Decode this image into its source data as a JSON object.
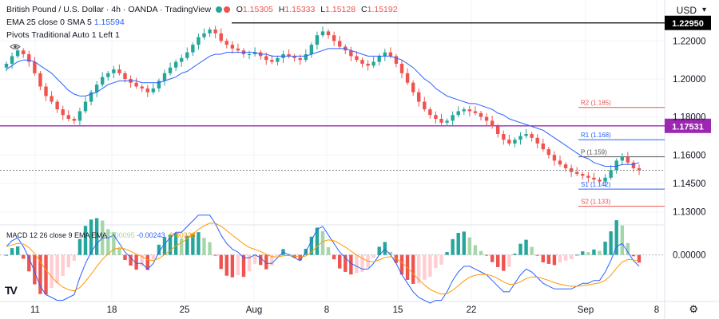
{
  "header": {
    "symbol": "British Pound / U.S. Dollar",
    "interval": "4h",
    "exchange": "OANDA",
    "platform": "TradingView",
    "open_label": "O",
    "open": "1.15305",
    "high_label": "H",
    "high": "1.15333",
    "low_label": "L",
    "low": "1.15128",
    "close_label": "C",
    "close": "1.15192",
    "ema_label": "EMA 25 close 0 SMA 5",
    "ema_value": "1.15594",
    "pivots_label": "Pivots Traditional Auto 1 Left 1"
  },
  "currency": "USD",
  "colors": {
    "bull": "#26a69a",
    "bear": "#ef5350",
    "ema": "#2962ff",
    "macd_line": "#2962ff",
    "signal_line": "#ff9800",
    "level_line": "#9c27b0"
  },
  "chart_data": [
    {
      "type": "candlestick",
      "title": "British Pound / U.S. Dollar, 4h, OANDA",
      "ylabel": "USD",
      "ylim": [
        1.124,
        1.234
      ],
      "y_ticks": [
        "1.22000",
        "1.20000",
        "1.18000",
        "1.16000",
        "1.14500",
        "1.13000"
      ],
      "x_ticks": [
        "11",
        "18",
        "25",
        "Aug",
        "8",
        "15",
        "22",
        "Sep",
        "8"
      ],
      "horizontal_levels": [
        {
          "label": "1.22950",
          "value": 1.2295
        },
        {
          "label": "1.17531",
          "value": 1.17531
        }
      ],
      "pivots": [
        {
          "label": "R2 (1.185)",
          "value": 1.185
        },
        {
          "label": "R1 (1.168)",
          "value": 1.168
        },
        {
          "label": "P (1.159)",
          "value": 1.159
        },
        {
          "label": "S1 (1.142)",
          "value": 1.142
        },
        {
          "label": "S2 (1.133)",
          "value": 1.133
        }
      ],
      "last_price": 1.15192,
      "close_path": [
        1.208,
        1.212,
        1.215,
        1.213,
        1.209,
        1.203,
        1.196,
        1.191,
        1.188,
        1.184,
        1.181,
        1.179,
        1.178,
        1.183,
        1.188,
        1.193,
        1.197,
        1.201,
        1.203,
        1.205,
        1.203,
        1.2,
        1.198,
        1.196,
        1.195,
        1.193,
        1.195,
        1.199,
        1.203,
        1.206,
        1.209,
        1.211,
        1.214,
        1.218,
        1.222,
        1.224,
        1.226,
        1.224,
        1.22,
        1.218,
        1.216,
        1.215,
        1.213,
        1.213,
        1.214,
        1.212,
        1.21,
        1.209,
        1.211,
        1.213,
        1.212,
        1.211,
        1.21,
        1.213,
        1.218,
        1.223,
        1.225,
        1.223,
        1.22,
        1.217,
        1.215,
        1.212,
        1.21,
        1.208,
        1.207,
        1.209,
        1.212,
        1.214,
        1.212,
        1.208,
        1.203,
        1.198,
        1.193,
        1.188,
        1.184,
        1.181,
        1.179,
        1.177,
        1.178,
        1.181,
        1.183,
        1.184,
        1.183,
        1.182,
        1.18,
        1.178,
        1.175,
        1.171,
        1.168,
        1.166,
        1.168,
        1.17,
        1.171,
        1.169,
        1.166,
        1.163,
        1.16,
        1.157,
        1.155,
        1.153,
        1.151,
        1.15,
        1.149,
        1.148,
        1.147,
        1.146,
        1.148,
        1.152,
        1.157,
        1.159,
        1.156,
        1.153,
        1.152
      ],
      "ema_path": [
        1.205,
        1.207,
        1.209,
        1.21,
        1.21,
        1.209,
        1.207,
        1.205,
        1.203,
        1.2,
        1.197,
        1.194,
        1.192,
        1.191,
        1.191,
        1.192,
        1.193,
        1.195,
        1.197,
        1.198,
        1.199,
        1.199,
        1.199,
        1.199,
        1.198,
        1.198,
        1.198,
        1.198,
        1.199,
        1.2,
        1.201,
        1.203,
        1.204,
        1.206,
        1.208,
        1.21,
        1.212,
        1.213,
        1.213,
        1.214,
        1.214,
        1.214,
        1.214,
        1.214,
        1.214,
        1.213,
        1.213,
        1.212,
        1.212,
        1.212,
        1.212,
        1.212,
        1.212,
        1.212,
        1.213,
        1.214,
        1.215,
        1.216,
        1.216,
        1.216,
        1.216,
        1.215,
        1.214,
        1.213,
        1.212,
        1.212,
        1.212,
        1.212,
        1.212,
        1.211,
        1.21,
        1.208,
        1.206,
        1.203,
        1.2,
        1.198,
        1.195,
        1.193,
        1.191,
        1.19,
        1.189,
        1.188,
        1.187,
        1.187,
        1.186,
        1.185,
        1.184,
        1.182,
        1.181,
        1.179,
        1.178,
        1.177,
        1.176,
        1.175,
        1.174,
        1.173,
        1.171,
        1.169,
        1.167,
        1.165,
        1.163,
        1.161,
        1.159,
        1.158,
        1.156,
        1.155,
        1.154,
        1.154,
        1.154,
        1.155,
        1.155,
        1.155,
        1.156
      ]
    },
    {
      "type": "macd",
      "label": "MACD 12 26 close 9 EMA EMA",
      "histogram_label": "0.00095",
      "macd_label": "-0.00243",
      "signal_label": "-0.00338",
      "ylim": [
        -0.014,
        0.008
      ],
      "y_ticks": [
        "0.00000"
      ],
      "zero_line": 0
    }
  ]
}
